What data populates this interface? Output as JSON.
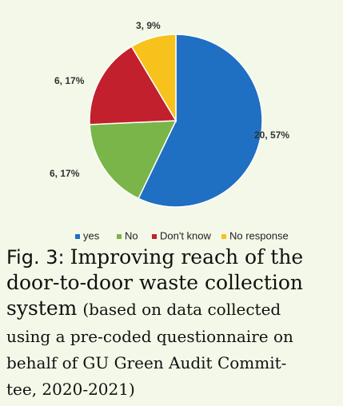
{
  "chart_data": {
    "type": "pie",
    "categories": [
      "yes",
      "No",
      "Don't know",
      "No response"
    ],
    "values": [
      20,
      6,
      6,
      3
    ],
    "value_labels": [
      "20, 57%",
      "6, 17%",
      "6, 17%",
      "3, 9%"
    ],
    "colors": [
      "#1f6fc3",
      "#79b548",
      "#c1202c",
      "#f6c21b"
    ],
    "legend": "bottom",
    "caption": {
      "label": "Fig. 3:",
      "title_lines": [
        "Improving reach of the",
        "door-to-door waste collection",
        "system"
      ],
      "note_lines": [
        "(based on data collected",
        "using a pre-coded questionnaire on",
        "behalf of GU Green Audit Commit-",
        "tee, 2020-2021)"
      ]
    }
  }
}
